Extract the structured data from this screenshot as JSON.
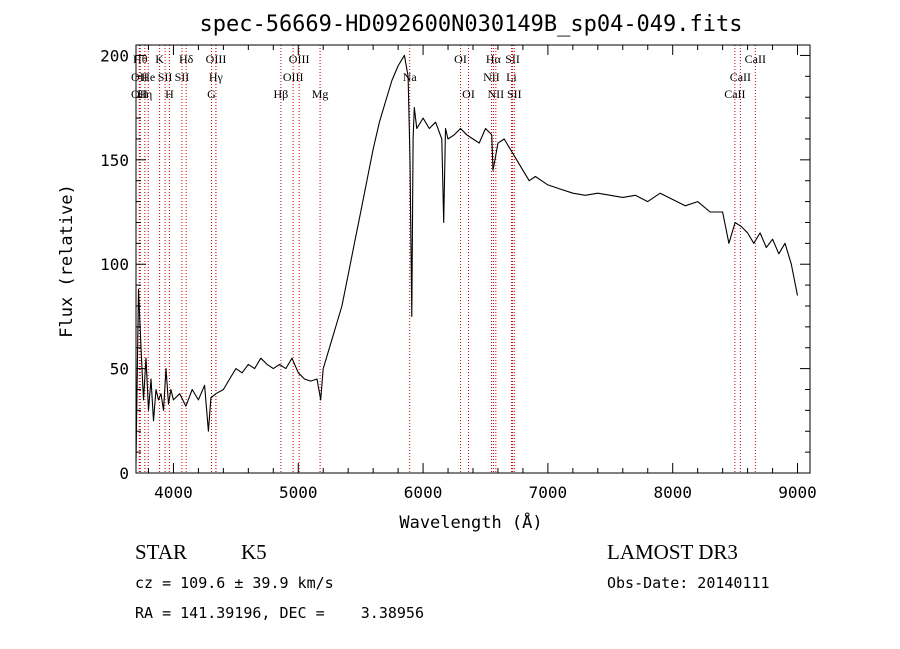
{
  "chart_data": {
    "type": "line",
    "title": "spec-56669-HD092600N030149B_sp04-049.fits",
    "xlabel": "Wavelength (Å)",
    "ylabel": "Flux (relative)",
    "xlim": [
      3700,
      9100
    ],
    "ylim": [
      0,
      205
    ],
    "xticks": [
      4000,
      5000,
      6000,
      7000,
      8000,
      9000
    ],
    "yticks": [
      0,
      50,
      100,
      150,
      200
    ],
    "grid": false,
    "line_color": "#000000",
    "marker_color": "#cc0000",
    "series": [
      {
        "x": [
          3700,
          3720,
          3740,
          3760,
          3780,
          3800,
          3820,
          3840,
          3860,
          3880,
          3900,
          3920,
          3940,
          3960,
          3980,
          4000,
          4050,
          4100,
          4150,
          4200,
          4250,
          4280,
          4300,
          4340,
          4400,
          4450,
          4500,
          4550,
          4600,
          4650,
          4700,
          4750,
          4800,
          4850,
          4900,
          4950,
          5000,
          5050,
          5100,
          5150,
          5180,
          5200,
          5250,
          5300,
          5350,
          5400,
          5450,
          5500,
          5550,
          5600,
          5650,
          5700,
          5750,
          5800,
          5850,
          5880,
          5895,
          5910,
          5920,
          5930,
          5950,
          6000,
          6050,
          6100,
          6150,
          6165,
          6180,
          6200,
          6250,
          6300,
          6350,
          6400,
          6450,
          6500,
          6550,
          6560,
          6600,
          6650,
          6700,
          6750,
          6800,
          6850,
          6900,
          6950,
          7000,
          7100,
          7200,
          7300,
          7400,
          7500,
          7600,
          7700,
          7800,
          7900,
          8000,
          8100,
          8200,
          8300,
          8400,
          8450,
          8500,
          8550,
          8600,
          8650,
          8700,
          8750,
          8800,
          8850,
          8900,
          8950,
          9000
        ],
        "y": [
          5,
          88,
          60,
          35,
          55,
          30,
          45,
          25,
          40,
          35,
          38,
          30,
          50,
          33,
          40,
          35,
          38,
          32,
          40,
          35,
          42,
          20,
          36,
          38,
          40,
          45,
          50,
          48,
          52,
          50,
          55,
          52,
          50,
          52,
          50,
          55,
          48,
          45,
          44,
          45,
          35,
          50,
          60,
          70,
          80,
          95,
          110,
          125,
          140,
          155,
          168,
          178,
          188,
          195,
          200,
          190,
          150,
          75,
          160,
          175,
          165,
          170,
          165,
          168,
          160,
          120,
          165,
          160,
          162,
          165,
          162,
          160,
          158,
          165,
          162,
          145,
          158,
          160,
          155,
          150,
          145,
          140,
          142,
          140,
          138,
          136,
          134,
          133,
          134,
          133,
          132,
          133,
          130,
          134,
          131,
          128,
          130,
          125,
          125,
          110,
          120,
          118,
          115,
          110,
          115,
          108,
          112,
          105,
          110,
          100,
          85
        ]
      }
    ],
    "line_markers": [
      {
        "x": 3734,
        "label": "Hθ",
        "row": 0
      },
      {
        "x": 3727,
        "label": "OII",
        "row": 1
      },
      {
        "x": 3727,
        "label": "OII",
        "row": 2
      },
      {
        "x": 3771,
        "label": "Hη",
        "row": 2
      },
      {
        "x": 3798,
        "label": "He",
        "row": 1
      },
      {
        "x": 3889,
        "label": "K",
        "row": 0
      },
      {
        "x": 3933,
        "label": "SII",
        "row": 1
      },
      {
        "x": 3968,
        "label": "H",
        "row": 2
      },
      {
        "x": 4102,
        "label": "Hδ",
        "row": 0
      },
      {
        "x": 4068,
        "label": "SII",
        "row": 1
      },
      {
        "x": 4341,
        "label": "OIII",
        "row": 0
      },
      {
        "x": 4340,
        "label": "Hγ",
        "row": 1
      },
      {
        "x": 4305,
        "label": "G",
        "row": 2
      },
      {
        "x": 5007,
        "label": "OIII",
        "row": 0
      },
      {
        "x": 4959,
        "label": "OIII",
        "row": 1
      },
      {
        "x": 4861,
        "label": "Hβ",
        "row": 2
      },
      {
        "x": 5175,
        "label": "Mg",
        "row": 2
      },
      {
        "x": 5893,
        "label": "Na",
        "row": 1
      },
      {
        "x": 6300,
        "label": "OI",
        "row": 0
      },
      {
        "x": 6364,
        "label": "OI",
        "row": 2
      },
      {
        "x": 6563,
        "label": "Hα",
        "row": 0
      },
      {
        "x": 6548,
        "label": "NII",
        "row": 1
      },
      {
        "x": 6583,
        "label": "NII",
        "row": 2
      },
      {
        "x": 6717,
        "label": "SII",
        "row": 0
      },
      {
        "x": 6708,
        "label": "Li",
        "row": 1
      },
      {
        "x": 6731,
        "label": "SII",
        "row": 2
      },
      {
        "x": 8662,
        "label": "CaII",
        "row": 0
      },
      {
        "x": 8542,
        "label": "CaII",
        "row": 1
      },
      {
        "x": 8498,
        "label": "CaII",
        "row": 2
      }
    ]
  },
  "info": {
    "object_class": "STAR",
    "subclass": "K5",
    "survey": "LAMOST DR3",
    "cz": "cz = 109.6 ± 39.9 km/s",
    "obs_date": "Obs-Date: 20140111",
    "coords": "RA = 141.39196, DEC =    3.38956"
  }
}
